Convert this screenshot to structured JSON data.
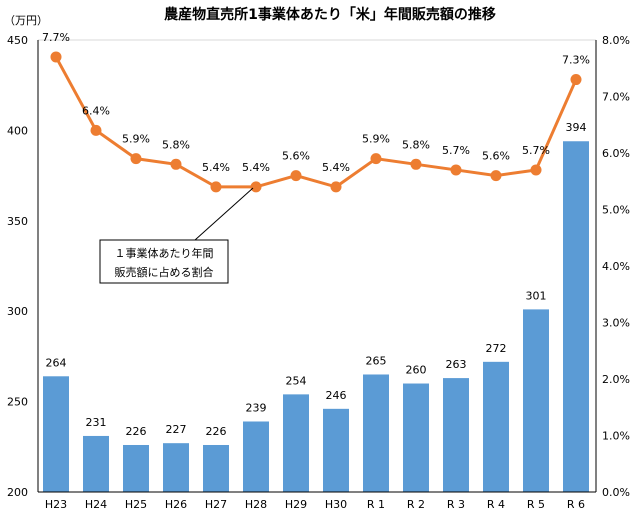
{
  "chart_data": {
    "type": "bar+line",
    "title": "農産物直売所1事業体あたり「米」年間販売額の推移",
    "ylabel": "（万円）",
    "categories": [
      "H23",
      "H24",
      "H25",
      "H26",
      "H27",
      "H28",
      "H29",
      "H30",
      "R 1",
      "R 2",
      "R 3",
      "R 4",
      "R 5",
      "R 6"
    ],
    "series": [
      {
        "name": "1事業体あたり年間販売額",
        "type": "bar",
        "axis": "left",
        "values": [
          264,
          231,
          226,
          227,
          226,
          239,
          254,
          246,
          265,
          260,
          263,
          272,
          301,
          394
        ],
        "labels": [
          "264",
          "231",
          "226",
          "227",
          "226",
          "239",
          "254",
          "246",
          "265",
          "260",
          "263",
          "272",
          "301",
          "394"
        ]
      },
      {
        "name": "1事業体あたり年間販売額に占める割合",
        "type": "line",
        "axis": "right",
        "values": [
          7.7,
          6.4,
          5.9,
          5.8,
          5.4,
          5.4,
          5.6,
          5.4,
          5.9,
          5.8,
          5.7,
          5.6,
          5.7,
          7.3
        ],
        "labels": [
          "7.7%",
          "6.4%",
          "5.9%",
          "5.8%",
          "5.4%",
          "5.4%",
          "5.6%",
          "5.4%",
          "5.9%",
          "5.8%",
          "5.7%",
          "5.6%",
          "5.7%",
          "7.3%"
        ]
      }
    ],
    "ylim": [
      200,
      450
    ],
    "yticks": [
      "200",
      "250",
      "300",
      "350",
      "400",
      "450"
    ],
    "y2lim": [
      0,
      8
    ],
    "y2ticks": [
      "0.0%",
      "1.0%",
      "2.0%",
      "3.0%",
      "4.0%",
      "5.0%",
      "6.0%",
      "7.0%",
      "8.0%"
    ],
    "annotation": [
      "１事業体あたり年間",
      "販売額に占める割合"
    ],
    "colors": {
      "bar": "#5b9bd5",
      "line": "#ed7d31"
    }
  }
}
